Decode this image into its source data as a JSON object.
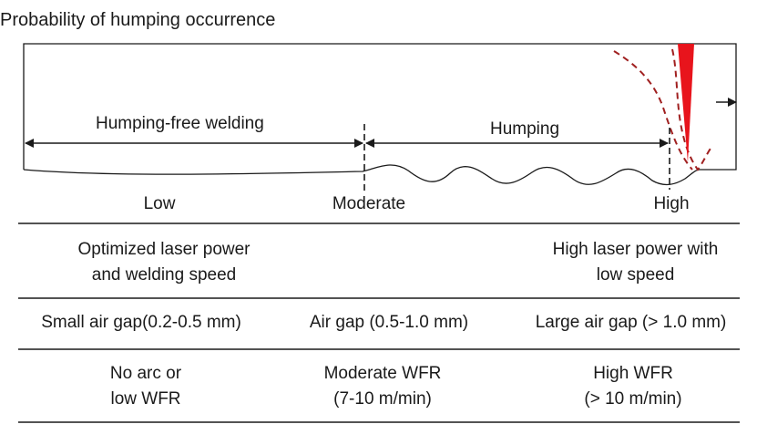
{
  "title": "Probability of humping occurrence",
  "zones": {
    "humping_free": "Humping-free welding",
    "humping": "Humping"
  },
  "probability": {
    "low": "Low",
    "moderate": "Moderate",
    "high": "High"
  },
  "rows": {
    "power_speed": {
      "low": [
        "Optimized laser power",
        "and welding speed"
      ],
      "high": [
        "High laser power with",
        "low speed"
      ]
    },
    "air_gap": {
      "low": "Small air gap(0.2-0.5 mm)",
      "moderate": "Air gap (0.5-1.0 mm)",
      "high": "Large air gap (> 1.0 mm)"
    },
    "wfr": {
      "low": [
        "No arc or",
        "low WFR"
      ],
      "moderate": [
        "Moderate WFR",
        "(7-10 m/min)"
      ],
      "high": [
        "High WFR",
        "(> 10 m/min)"
      ]
    }
  },
  "colors": {
    "beam": "#e8141c",
    "keyhole_outline": "#a02020",
    "line": "#1a1a1a"
  }
}
